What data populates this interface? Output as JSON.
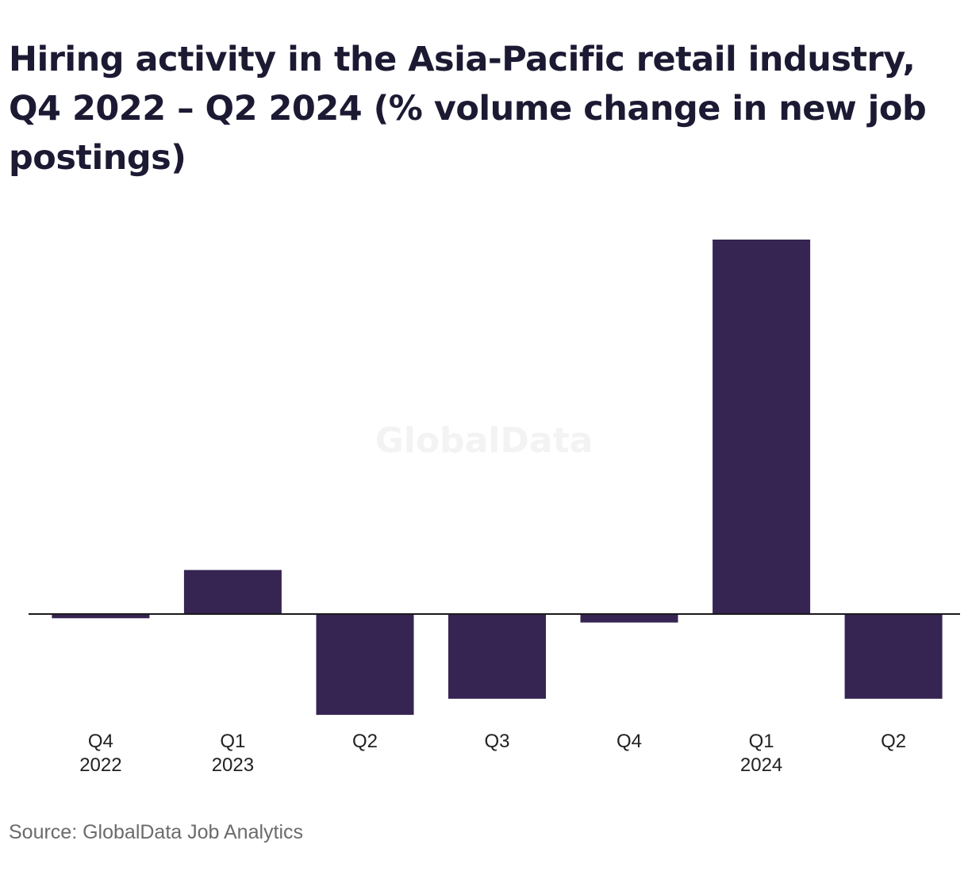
{
  "watermark": "GlobalData",
  "source": "Source: GlobalData Job Analytics",
  "colors": {
    "bar": "#362452",
    "axis": "#1a1a1a",
    "title": "#1c1a33",
    "source": "#6b6b6b"
  },
  "chart_data": {
    "type": "bar",
    "title": "Hiring activity in the Asia-Pacific retail industry, Q4 2022 – Q2 2024 (% volume change in new job postings)",
    "xlabel": "",
    "ylabel": "",
    "y_axis_visible": false,
    "grid": false,
    "categories": [
      {
        "label": "Q4",
        "year": "2022"
      },
      {
        "label": "Q1",
        "year": "2023"
      },
      {
        "label": "Q2",
        "year": ""
      },
      {
        "label": "Q3",
        "year": ""
      },
      {
        "label": "Q4",
        "year": ""
      },
      {
        "label": "Q1",
        "year": "2024"
      },
      {
        "label": "Q2",
        "year": ""
      }
    ],
    "values": [
      -0.5,
      5.2,
      -11.9,
      -10.0,
      -1.0,
      44.2,
      -10.0
    ],
    "ylim": [
      -12.5,
      46
    ]
  }
}
